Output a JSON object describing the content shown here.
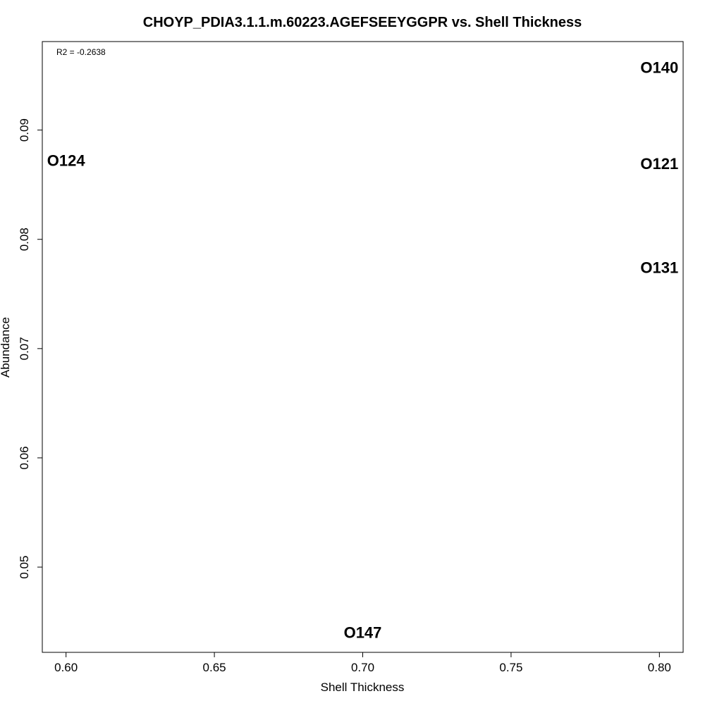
{
  "chart_data": {
    "type": "scatter",
    "title": "CHOYP_PDIA3.1.1.m.60223.AGEFSEEYGGPR vs. Shell Thickness",
    "xlabel": "Shell Thickness",
    "ylabel": "Abundance",
    "xlim": [
      0.592,
      0.808
    ],
    "ylim": [
      0.0422,
      0.0981
    ],
    "xticks": [
      0.6,
      0.65,
      0.7,
      0.75,
      0.8
    ],
    "xtick_labels": [
      "0.60",
      "0.65",
      "0.70",
      "0.75",
      "0.80"
    ],
    "yticks": [
      0.05,
      0.06,
      0.07,
      0.08,
      0.09
    ],
    "ytick_labels": [
      "0.05",
      "0.06",
      "0.07",
      "0.08",
      "0.09"
    ],
    "annotation": "R2 = -0.2638",
    "grid": false,
    "points": [
      {
        "label": "O124",
        "x": 0.6,
        "y": 0.0872
      },
      {
        "label": "O140",
        "x": 0.8,
        "y": 0.0957
      },
      {
        "label": "O121",
        "x": 0.8,
        "y": 0.0869
      },
      {
        "label": "O131",
        "x": 0.8,
        "y": 0.0774
      },
      {
        "label": "O147",
        "x": 0.7,
        "y": 0.044
      }
    ]
  }
}
